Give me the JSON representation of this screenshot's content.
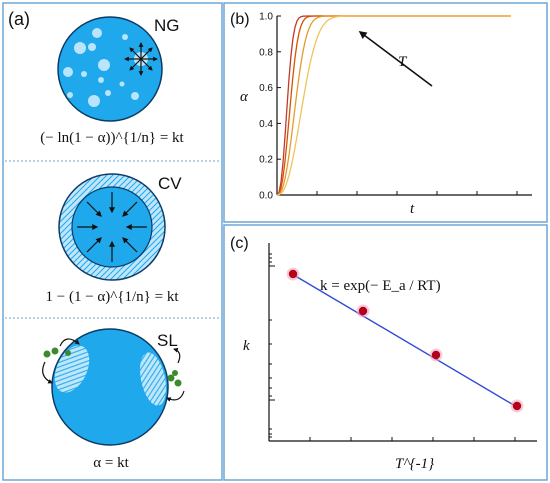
{
  "panel_a": {
    "label": "(a)",
    "ng": {
      "tag": "NG",
      "equation": "(− ln(1 − α))^{1/n} = kt"
    },
    "cv": {
      "tag": "CV",
      "equation": "1 − (1 − α)^{1/n} = kt"
    },
    "sl": {
      "tag": "SL",
      "equation": "α = kt"
    }
  },
  "panel_b": {
    "label": "(b)",
    "x_label": "t",
    "y_label": "α",
    "y_ticks": [
      "0.0",
      "0.2",
      "0.4",
      "0.6",
      "0.8",
      "1.0"
    ],
    "arrow_label": "T",
    "colors": [
      "#c0392b",
      "#d35400",
      "#e69a2e",
      "#f0c35a"
    ]
  },
  "panel_c": {
    "label": "(c)",
    "x_label": "T^{-1}",
    "y_label": "k",
    "equation": "k = exp(− E_a / RT)",
    "line_color": "#2f4bdc",
    "point_color": "#b3001b"
  },
  "colors": {
    "panel_border": "#6fa7d6",
    "sphere_fill": "#1fa9ec",
    "spot_fill": "#b9e4fb",
    "divider": "#6fa7d6",
    "particle": "#3b8a2e"
  }
}
